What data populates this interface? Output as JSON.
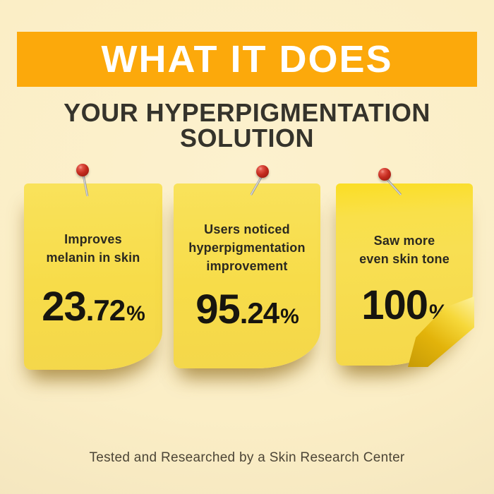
{
  "header": {
    "banner_title": "WHAT IT DOES",
    "headline": "YOUR HYPERPIGMENTATION SOLUTION"
  },
  "notes": [
    {
      "title": "Improves\nmelanin in skin",
      "value_main": "23",
      "value_decimal": ".72",
      "percent_sign": "%"
    },
    {
      "title": "Users noticed\nhyperpigmentation\nimprovement",
      "value_main": "95",
      "value_decimal": ".24",
      "percent_sign": "%"
    },
    {
      "title": "Saw more\neven skin tone",
      "value_main": "100",
      "value_decimal": "",
      "percent_sign": "%"
    }
  ],
  "footer": {
    "caption": "Tested and Researched by a Skin Research Center"
  },
  "icons": {
    "pin_icon": "red-pushpin",
    "fold_icon": "page-curl"
  },
  "colors": {
    "page_bg": "#FBEEC6",
    "banner_bg": "#FCA90B",
    "banner_text": "#FFFFFF",
    "headline_text": "#35332B",
    "note_yellow": "#F7DC49",
    "note_text": "#2B2920",
    "number_text": "#17150F",
    "footer_text": "#4C4536",
    "pin_red": "#C42B1F",
    "fold_gold": "#E2B30A"
  }
}
